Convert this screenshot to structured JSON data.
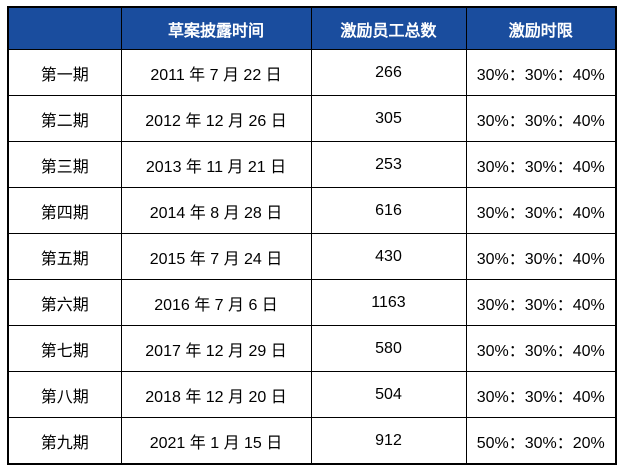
{
  "chart_data": {
    "type": "table",
    "title": "",
    "columns": [
      "",
      "草案披露时间",
      "激励员工总数",
      "激励时限"
    ],
    "rows": [
      [
        "第一期",
        "2011 年 7 月 22 日",
        266,
        "30%：30%：40%"
      ],
      [
        "第二期",
        "2012 年 12 月 26 日",
        305,
        "30%：30%：40%"
      ],
      [
        "第三期",
        "2013 年 11 月 21 日",
        253,
        "30%：30%：40%"
      ],
      [
        "第四期",
        "2014 年 8 月 28 日",
        616,
        "30%：30%：40%"
      ],
      [
        "第五期",
        "2015 年 7 月 24 日",
        430,
        "30%：30%：40%"
      ],
      [
        "第六期",
        "2016 年 7 月 6 日",
        1163,
        "30%：30%：40%"
      ],
      [
        "第七期",
        "2017 年 12 月 29 日",
        580,
        "30%：30%：40%"
      ],
      [
        "第八期",
        "2018 年 12 月 20 日",
        504,
        "30%：30%：40%"
      ],
      [
        "第九期",
        "2021 年 1 月 15 日",
        912,
        "50%：30%：20%"
      ]
    ]
  },
  "colors": {
    "header_background": "#1A4D9E",
    "header_text": "#FFFFFF",
    "grid_border": "#000000",
    "cell_text": "#000000",
    "page_background": "#FFFFFF"
  }
}
